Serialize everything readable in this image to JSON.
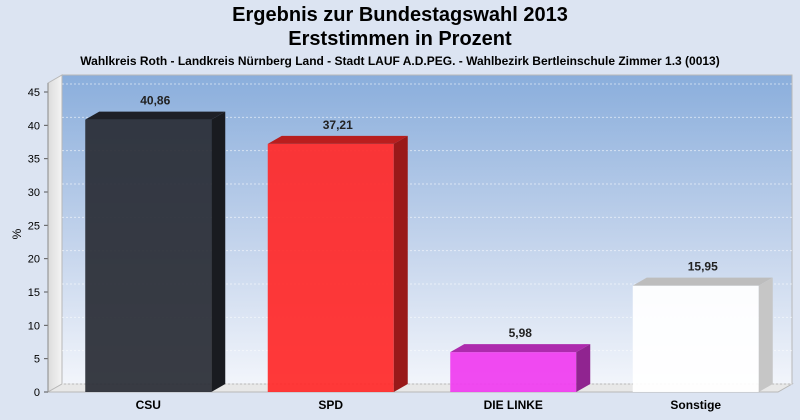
{
  "chart_data": {
    "type": "bar",
    "title": "Ergebnis zur Bundestagswahl 2013",
    "subtitle": "Erststimmen in Prozent",
    "caption": "Wahlkreis Roth - Landkreis Nürnberg Land - Stadt LAUF A.D.PEG. - Wahlbezirk Bertleinschule Zimmer 1.3 (0013)",
    "ylabel": "%",
    "ylim": [
      0,
      45
    ],
    "yticks": [
      0,
      5,
      10,
      15,
      20,
      25,
      30,
      35,
      40,
      45
    ],
    "grid": true,
    "categories": [
      "CSU",
      "SPD",
      "DIE LINKE",
      "Sonstige"
    ],
    "values": [
      40.86,
      37.21,
      5.98,
      15.95
    ],
    "value_labels": [
      "40,86",
      "37,21",
      "5,98",
      "15,95"
    ],
    "colors": [
      "#2a2d36",
      "#ff2a2a",
      "#f03cf0",
      "#ffffff"
    ]
  }
}
